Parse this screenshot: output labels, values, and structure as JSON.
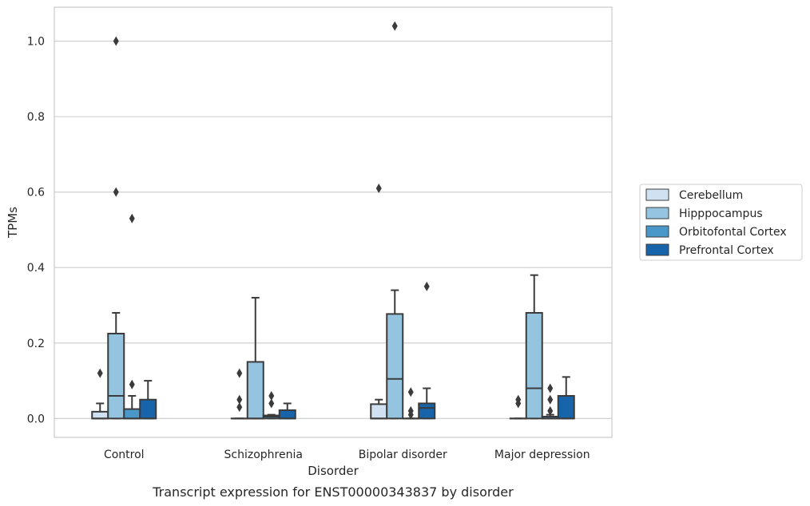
{
  "chart_data": {
    "type": "box",
    "caption": "Transcript expression for ENST00000343837 by disorder",
    "xlabel": "Disorder",
    "ylabel": "TPMs",
    "ylim": [
      -0.05,
      1.09
    ],
    "yticks": [
      0.0,
      0.2,
      0.4,
      0.6,
      0.8,
      1.0
    ],
    "ytick_labels": [
      "0.0",
      "0.2",
      "0.4",
      "0.6",
      "0.8",
      "1.0"
    ],
    "grid": "horizontal",
    "legend_position": "right",
    "categories": [
      "Control",
      "Schizophrenia",
      "Bipolar disorder",
      "Major depression"
    ],
    "series": [
      {
        "name": "Cerebellum",
        "color": "#d0e1f2",
        "boxes": [
          {
            "q1": 0.0,
            "median": 0.0,
            "q3": 0.018,
            "whislo": 0.0,
            "whishi": 0.04,
            "fliers": [
              0.12
            ]
          },
          {
            "q1": 0.0,
            "median": 0.0,
            "q3": 0.0,
            "whislo": 0.0,
            "whishi": 0.0,
            "fliers": [
              0.03,
              0.05,
              0.12
            ]
          },
          {
            "q1": 0.0,
            "median": 0.0,
            "q3": 0.038,
            "whislo": 0.0,
            "whishi": 0.05,
            "fliers": [
              0.61
            ]
          },
          {
            "q1": 0.0,
            "median": 0.0,
            "q3": 0.0,
            "whislo": 0.0,
            "whishi": 0.0,
            "fliers": [
              0.04,
              0.05
            ]
          }
        ]
      },
      {
        "name": "Hipppocampus",
        "color": "#94c4df",
        "boxes": [
          {
            "q1": 0.0,
            "median": 0.06,
            "q3": 0.225,
            "whislo": 0.0,
            "whishi": 0.28,
            "fliers": [
              0.6,
              1.0
            ]
          },
          {
            "q1": 0.0,
            "median": 0.0,
            "q3": 0.15,
            "whislo": 0.0,
            "whishi": 0.32,
            "fliers": []
          },
          {
            "q1": 0.0,
            "median": 0.105,
            "q3": 0.277,
            "whislo": 0.0,
            "whishi": 0.34,
            "fliers": [
              1.04
            ]
          },
          {
            "q1": 0.0,
            "median": 0.08,
            "q3": 0.28,
            "whislo": 0.0,
            "whishi": 0.38,
            "fliers": []
          }
        ]
      },
      {
        "name": "Orbitofontal Cortex",
        "color": "#4a98c9",
        "boxes": [
          {
            "q1": 0.0,
            "median": 0.0,
            "q3": 0.025,
            "whislo": 0.0,
            "whishi": 0.06,
            "fliers": [
              0.09,
              0.53
            ]
          },
          {
            "q1": 0.0,
            "median": 0.005,
            "q3": 0.008,
            "whislo": 0.0,
            "whishi": 0.01,
            "fliers": [
              0.04,
              0.06
            ]
          },
          {
            "q1": 0.0,
            "median": 0.0,
            "q3": 0.0,
            "whislo": 0.0,
            "whishi": 0.0,
            "fliers": [
              0.01,
              0.02,
              0.07
            ]
          },
          {
            "q1": 0.0,
            "median": 0.0,
            "q3": 0.005,
            "whislo": 0.0,
            "whishi": 0.01,
            "fliers": [
              0.02,
              0.05,
              0.08
            ]
          }
        ]
      },
      {
        "name": "Prefrontal Cortex",
        "color": "#1764ab",
        "boxes": [
          {
            "q1": 0.0,
            "median": 0.0,
            "q3": 0.05,
            "whislo": 0.0,
            "whishi": 0.1,
            "fliers": []
          },
          {
            "q1": 0.0,
            "median": 0.0,
            "q3": 0.022,
            "whislo": 0.0,
            "whishi": 0.04,
            "fliers": []
          },
          {
            "q1": 0.0,
            "median": 0.028,
            "q3": 0.04,
            "whislo": 0.0,
            "whishi": 0.08,
            "fliers": [
              0.35
            ]
          },
          {
            "q1": 0.0,
            "median": 0.0,
            "q3": 0.06,
            "whislo": 0.0,
            "whishi": 0.11,
            "fliers": []
          }
        ]
      }
    ]
  }
}
